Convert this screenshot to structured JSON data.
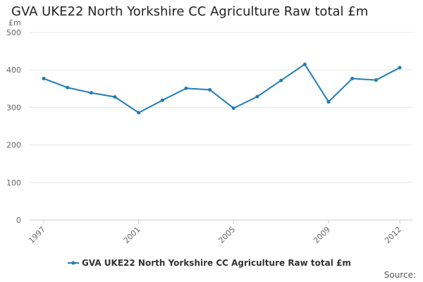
{
  "chart_data": {
    "type": "line",
    "title": "GVA UKE22 North Yorkshire CC Agriculture Raw total £m",
    "ylabel": "£m",
    "xlabel": "",
    "ylim": [
      0,
      500
    ],
    "yticks": [
      0,
      100,
      200,
      300,
      400,
      500
    ],
    "xticks": [
      1997,
      2001,
      2005,
      2009,
      2012
    ],
    "grid": true,
    "legend_position": "bottom",
    "series": [
      {
        "name": "GVA UKE22 North Yorkshire CC Agriculture Raw total £m",
        "color": "#1f7bb6",
        "x": [
          1997,
          1998,
          1999,
          2000,
          2001,
          2002,
          2003,
          2004,
          2005,
          2006,
          2007,
          2008,
          2009,
          2010,
          2011,
          2012
        ],
        "values": [
          377,
          353,
          339,
          328,
          286,
          319,
          351,
          347,
          298,
          329,
          372,
          415,
          315,
          377,
          373,
          406
        ]
      }
    ]
  },
  "source_label": "Source:"
}
